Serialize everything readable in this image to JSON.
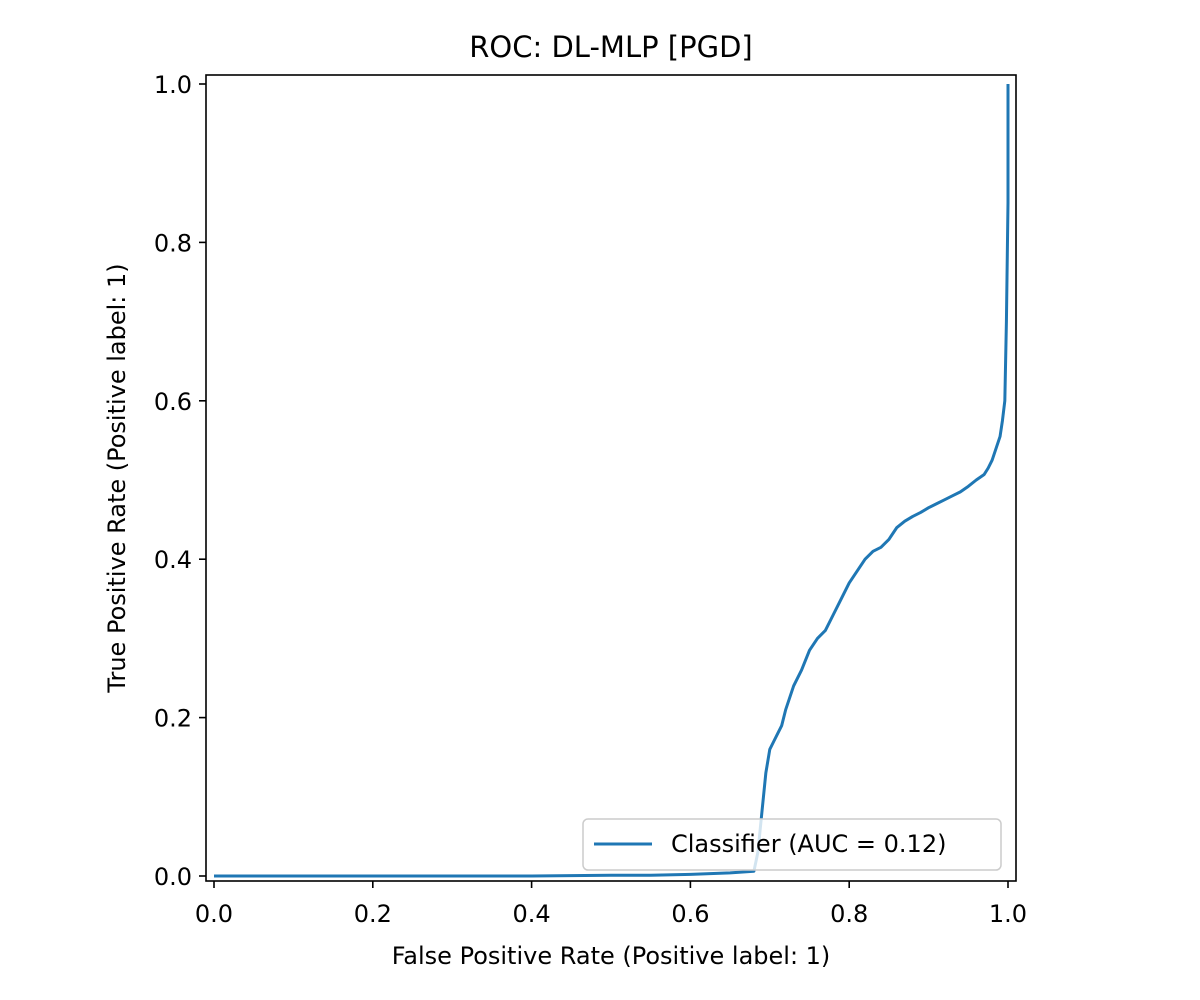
{
  "chart_data": {
    "type": "line",
    "title": "ROC: DL-MLP [PGD]",
    "xlabel": "False Positive Rate (Positive label: 1)",
    "ylabel": "True Positive Rate (Positive label: 1)",
    "xlim": [
      0.0,
      1.0
    ],
    "ylim": [
      0.0,
      1.0
    ],
    "xticks": [
      0.0,
      0.2,
      0.4,
      0.6,
      0.8,
      1.0
    ],
    "xtick_labels": [
      "0.0",
      "0.2",
      "0.4",
      "0.6",
      "0.8",
      "1.0"
    ],
    "yticks": [
      0.0,
      0.2,
      0.4,
      0.6,
      0.8,
      1.0
    ],
    "ytick_labels": [
      "0.0",
      "0.2",
      "0.4",
      "0.6",
      "0.8",
      "1.0"
    ],
    "grid": false,
    "legend_position": "lower right",
    "series": [
      {
        "name": "Classifier (AUC = 0.12)",
        "color": "#1f77b4",
        "x": [
          0.0,
          0.1,
          0.2,
          0.3,
          0.4,
          0.5,
          0.55,
          0.6,
          0.65,
          0.68,
          0.685,
          0.69,
          0.695,
          0.7,
          0.705,
          0.71,
          0.715,
          0.72,
          0.73,
          0.74,
          0.75,
          0.76,
          0.77,
          0.78,
          0.79,
          0.8,
          0.81,
          0.82,
          0.83,
          0.84,
          0.85,
          0.86,
          0.87,
          0.88,
          0.89,
          0.9,
          0.91,
          0.92,
          0.93,
          0.94,
          0.95,
          0.96,
          0.97,
          0.975,
          0.98,
          0.985,
          0.99,
          0.993,
          0.996,
          0.998,
          1.0,
          1.0,
          1.0,
          1.0
        ],
        "y": [
          0.0,
          0.0,
          0.0,
          0.0,
          0.0,
          0.001,
          0.001,
          0.002,
          0.004,
          0.006,
          0.03,
          0.08,
          0.13,
          0.16,
          0.17,
          0.18,
          0.19,
          0.21,
          0.24,
          0.26,
          0.285,
          0.3,
          0.31,
          0.33,
          0.35,
          0.37,
          0.385,
          0.4,
          0.41,
          0.415,
          0.425,
          0.44,
          0.448,
          0.454,
          0.459,
          0.465,
          0.47,
          0.475,
          0.48,
          0.485,
          0.492,
          0.5,
          0.507,
          0.515,
          0.525,
          0.54,
          0.555,
          0.575,
          0.6,
          0.7,
          0.85,
          0.95,
          1.0,
          1.0
        ]
      }
    ]
  }
}
